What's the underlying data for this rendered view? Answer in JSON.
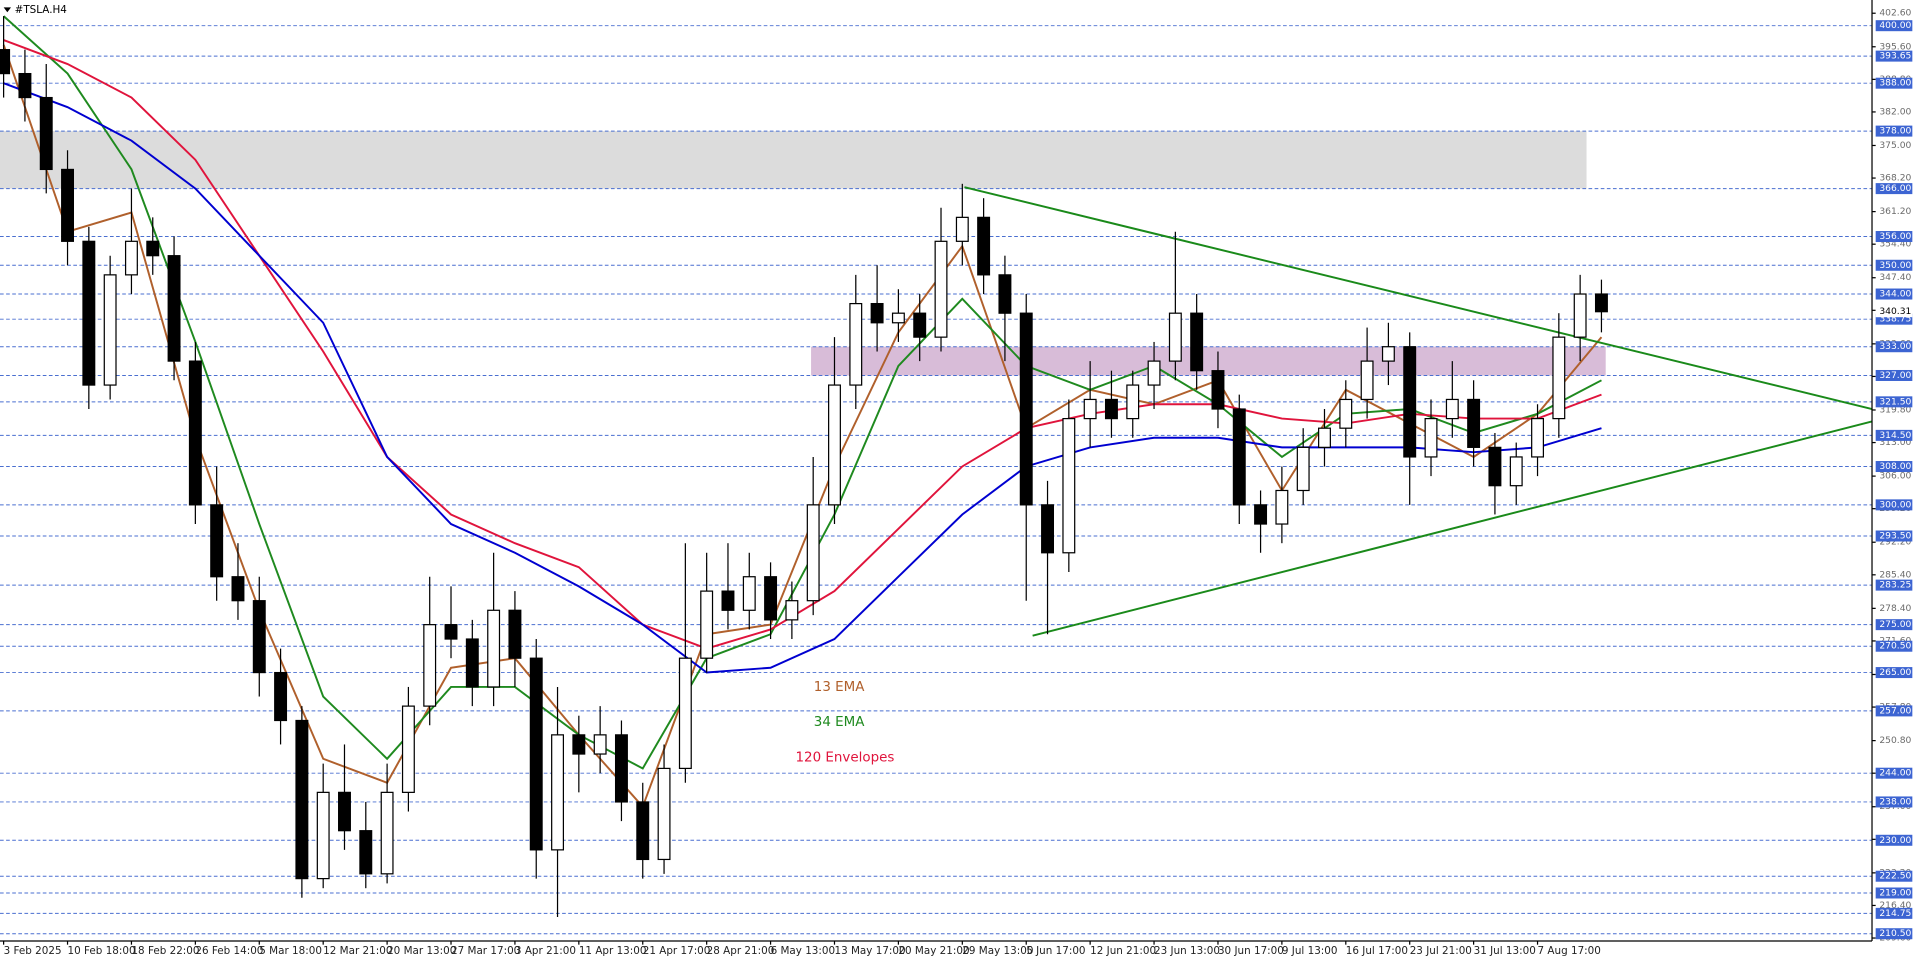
{
  "chart_data": {
    "type": "candlestick",
    "title": "#TSLA.H4",
    "categories": [
      "3 Feb 2025",
      null,
      null,
      "10 Feb 18:00",
      null,
      null,
      "18 Feb 22:00",
      null,
      null,
      "26 Feb 14:00",
      null,
      null,
      "5 Mar 18:00",
      null,
      null,
      "12 Mar 21:00",
      null,
      null,
      "20 Mar 13:00",
      null,
      null,
      "27 Mar 17:00",
      null,
      null,
      "3 Apr 21:00",
      null,
      null,
      "11 Apr 13:00",
      null,
      null,
      "21 Apr 17:00",
      null,
      null,
      "28 Apr 21:00",
      null,
      null,
      "6 May 13:00",
      null,
      null,
      "13 May 17:00",
      null,
      null,
      "20 May 21:00",
      null,
      null,
      "29 May 13:00",
      null,
      null,
      "5 Jun 17:00",
      null,
      null,
      "12 Jun 21:00",
      null,
      null,
      "23 Jun 13:00",
      null,
      null,
      "30 Jun 17:00",
      null,
      null,
      "9 Jul 13:00",
      null,
      null,
      "16 Jul 17:00",
      null,
      null,
      "23 Jul 21:00",
      null,
      null,
      "31 Jul 13:00",
      null,
      null,
      "7 Aug 17:00",
      null,
      null,
      null
    ],
    "open": [
      395,
      390,
      385,
      370,
      355,
      325,
      348,
      355,
      352,
      330,
      300,
      285,
      280,
      265,
      255,
      222,
      240,
      232,
      223,
      240,
      258,
      275,
      272,
      262,
      278,
      268,
      228,
      252,
      248,
      252,
      238,
      226,
      245,
      268,
      282,
      278,
      285,
      276,
      280,
      300,
      325,
      342,
      338,
      340,
      335,
      355,
      360,
      348,
      340,
      300,
      290,
      318,
      322,
      318,
      325,
      330,
      340,
      328,
      320,
      300,
      296,
      303,
      312,
      316,
      322,
      330,
      333,
      310,
      318,
      322,
      312,
      304,
      310,
      318,
      335,
      344
    ],
    "high": [
      402,
      395,
      392,
      374,
      358,
      352,
      366,
      360,
      356,
      334,
      308,
      292,
      285,
      270,
      258,
      246,
      250,
      238,
      246,
      262,
      285,
      283,
      276,
      290,
      282,
      272,
      262,
      256,
      258,
      255,
      242,
      250,
      292,
      290,
      292,
      290,
      288,
      284,
      310,
      335,
      348,
      350,
      345,
      344,
      362,
      367,
      364,
      352,
      344,
      305,
      322,
      330,
      328,
      328,
      334,
      357,
      344,
      332,
      323,
      303,
      308,
      316,
      320,
      326,
      337,
      338,
      336,
      322,
      330,
      326,
      315,
      313,
      321,
      340,
      348,
      347
    ],
    "low": [
      385,
      380,
      365,
      350,
      320,
      322,
      344,
      348,
      326,
      296,
      280,
      276,
      260,
      250,
      218,
      220,
      228,
      220,
      221,
      236,
      254,
      268,
      258,
      258,
      262,
      222,
      214,
      240,
      244,
      234,
      222,
      223,
      242,
      265,
      274,
      274,
      272,
      272,
      277,
      296,
      320,
      332,
      334,
      330,
      332,
      350,
      344,
      330,
      280,
      273,
      286,
      312,
      314,
      314,
      320,
      326,
      324,
      316,
      296,
      290,
      292,
      300,
      308,
      312,
      318,
      325,
      300,
      306,
      314,
      308,
      298,
      300,
      306,
      314,
      330,
      336
    ],
    "close": [
      390,
      385,
      370,
      355,
      325,
      348,
      355,
      352,
      330,
      300,
      285,
      280,
      265,
      255,
      222,
      240,
      232,
      223,
      240,
      258,
      275,
      272,
      262,
      278,
      268,
      228,
      252,
      248,
      252,
      238,
      226,
      245,
      268,
      282,
      278,
      285,
      276,
      280,
      300,
      325,
      342,
      338,
      340,
      335,
      355,
      360,
      348,
      340,
      300,
      290,
      318,
      322,
      318,
      325,
      330,
      340,
      328,
      320,
      300,
      296,
      303,
      312,
      316,
      322,
      330,
      333,
      310,
      318,
      322,
      312,
      304,
      310,
      318,
      335,
      344,
      340.31
    ],
    "last_price": 340.31,
    "xlim": [
      -0.17,
      87.7
    ],
    "ylim": [
      208.98,
      404.85
    ],
    "yticks": [
      {
        "value": 402.6,
        "label": "402.60"
      },
      {
        "value": 395.6,
        "label": "395.60"
      },
      {
        "value": 388.8,
        "label": "388.80"
      },
      {
        "value": 382,
        "label": "382.00"
      },
      {
        "value": 375,
        "label": "375.00"
      },
      {
        "value": 368.2,
        "label": "368.20"
      },
      {
        "value": 361.2,
        "label": "361.20"
      },
      {
        "value": 354.4,
        "label": "354.40"
      },
      {
        "value": 347.4,
        "label": "347.40"
      },
      {
        "value": 340.6,
        "label": "340.60"
      },
      {
        "value": 333.6,
        "label": "333.60"
      },
      {
        "value": 326.8,
        "label": "326.80"
      },
      {
        "value": 319.8,
        "label": "319.80"
      },
      {
        "value": 313,
        "label": "313.00"
      },
      {
        "value": 306,
        "label": "306.00"
      },
      {
        "value": 299.2,
        "label": "299.20"
      },
      {
        "value": 292.2,
        "label": "292.20"
      },
      {
        "value": 285.4,
        "label": "285.40"
      },
      {
        "value": 278.4,
        "label": "278.40"
      },
      {
        "value": 271.6,
        "label": "271.60"
      },
      {
        "value": 264.6,
        "label": "264.60"
      },
      {
        "value": 257.8,
        "label": "257.80"
      },
      {
        "value": 250.8,
        "label": "250.80"
      },
      {
        "value": 244,
        "label": "244.00"
      },
      {
        "value": 237,
        "label": "237.00"
      },
      {
        "value": 230.2,
        "label": "230.20"
      },
      {
        "value": 223.2,
        "label": "223.20"
      },
      {
        "value": 216.4,
        "label": "216.40"
      },
      {
        "value": 209.6,
        "label": "209.60"
      }
    ],
    "levels": [
      {
        "value": 400,
        "label": "400.00"
      },
      393.65,
      {
        "value": 388,
        "label": "388.00"
      },
      {
        "value": 378,
        "label": "378.00"
      },
      {
        "value": 366,
        "label": "366.00"
      },
      {
        "value": 356,
        "label": "356.00"
      },
      {
        "value": 350,
        "label": "350.00"
      },
      {
        "value": 344,
        "label": "344.00"
      },
      338.75,
      {
        "value": 333,
        "label": "333.00"
      },
      {
        "value": 327,
        "label": "327.00"
      },
      {
        "value": 321.5,
        "label": "321.50"
      },
      {
        "value": 314.5,
        "label": "314.50"
      },
      {
        "value": 308,
        "label": "308.00"
      },
      {
        "value": 300,
        "label": "300.00"
      },
      {
        "value": 293.5,
        "label": "293.50"
      },
      283.25,
      {
        "value": 275,
        "label": "275.00"
      },
      {
        "value": 270.5,
        "label": "270.50"
      },
      {
        "value": 265,
        "label": "265.00"
      },
      {
        "value": 257,
        "label": "257.00"
      },
      {
        "value": 244,
        "label": "244.00"
      },
      {
        "value": 238,
        "label": "238.00"
      },
      {
        "value": 230,
        "label": "230.00"
      },
      {
        "value": 222.5,
        "label": "222.50"
      },
      {
        "value": 219,
        "label": "219.00"
      },
      214.75,
      {
        "value": 210.5,
        "label": "210.50"
      }
    ],
    "indicators": [
      {
        "name": "13 EMA",
        "color": "#b0602c",
        "x": [
          0,
          3,
          6,
          9,
          12,
          15,
          18,
          21,
          24,
          27,
          30,
          33,
          36,
          39,
          42,
          45,
          48,
          51,
          54,
          57,
          60,
          63,
          66,
          69,
          72,
          75
        ],
        "values": [
          396,
          357,
          361,
          314,
          278,
          247,
          242,
          266,
          268,
          252,
          237,
          273,
          275,
          308,
          336,
          354,
          316,
          324,
          321,
          326,
          303,
          324,
          317,
          310,
          319,
          335
        ]
      },
      {
        "name": "34 EMA",
        "color": "#1f8a1f",
        "x": [
          0,
          3,
          6,
          9,
          12,
          15,
          18,
          21,
          24,
          27,
          30,
          33,
          36,
          39,
          42,
          45,
          48,
          51,
          54,
          57,
          60,
          63,
          66,
          69,
          72,
          75
        ],
        "values": [
          402,
          390,
          370,
          334,
          296,
          260,
          247,
          262,
          262,
          252,
          245,
          268,
          273,
          298,
          329,
          343,
          329,
          324,
          329,
          321,
          310,
          319,
          320,
          315,
          319,
          326
        ]
      },
      {
        "name": "120 Envelopes",
        "color": "#e0143c",
        "x": [
          0,
          3,
          6,
          9,
          12,
          15,
          18,
          21,
          24,
          27,
          30,
          33,
          36,
          39,
          42,
          45,
          48,
          51,
          54,
          57,
          60,
          63,
          66,
          69,
          72,
          75
        ],
        "values": [
          397,
          392,
          385,
          372,
          352,
          332,
          310,
          298,
          292,
          287,
          275,
          270,
          274,
          282,
          295,
          308,
          316,
          319,
          321,
          321,
          318,
          317,
          319,
          318,
          318,
          323
        ]
      },
      {
        "color": "#0000d0",
        "x": [
          0,
          3,
          6,
          9,
          12,
          15,
          18,
          21,
          24,
          27,
          30,
          33,
          36,
          39,
          42,
          45,
          48,
          51,
          54,
          57,
          60,
          63,
          66,
          69,
          72,
          75
        ],
        "values": [
          388,
          383,
          376,
          366,
          352,
          338,
          310,
          296,
          290,
          283,
          275,
          265,
          266,
          272,
          285,
          298,
          308,
          312,
          314,
          314,
          312,
          312,
          312,
          311,
          312,
          316
        ]
      }
    ],
    "trendlines": [
      {
        "color": "#1a8a1a",
        "x": [
          45.1,
          87.7
        ],
        "values": [
          366.3,
          320
        ]
      },
      {
        "color": "#1a8a1a",
        "x": [
          48.3,
          87.7
        ],
        "values": [
          272.7,
          317.4
        ]
      }
    ],
    "zones": [
      {
        "color": "#dcdcdc",
        "x": [
          -0.17,
          74.3
        ],
        "values": [
          366,
          378
        ]
      },
      {
        "color": "#d8bcd8",
        "x": [
          37.9,
          75.2
        ],
        "values": [
          327,
          333
        ]
      }
    ]
  }
}
